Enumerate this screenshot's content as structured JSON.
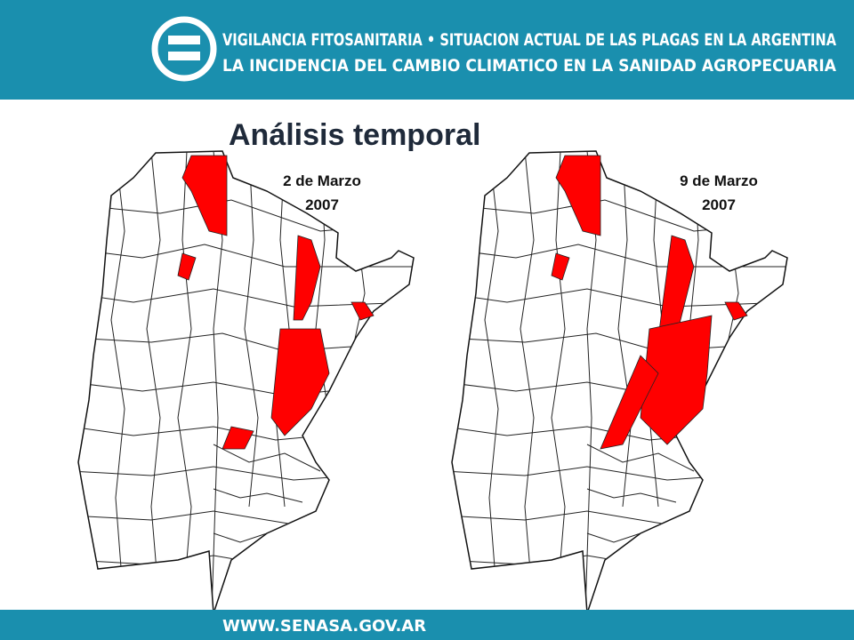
{
  "header": {
    "line1": "VIGILANCIA FITOSANITARIA • SITUACION ACTUAL DE LAS PLAGAS EN LA ARGENTINA",
    "line2": "LA INCIDENCIA DEL CAMBIO CLIMATICO EN LA SANIDAD AGROPECUARIA"
  },
  "title": "Análisis temporal",
  "maps": [
    {
      "date": "2 de Marzo",
      "year": "2007"
    },
    {
      "date": "9 de Marzo",
      "year": "2007"
    }
  ],
  "footer": {
    "url": "WWW.SENASA.GOV.AR"
  }
}
